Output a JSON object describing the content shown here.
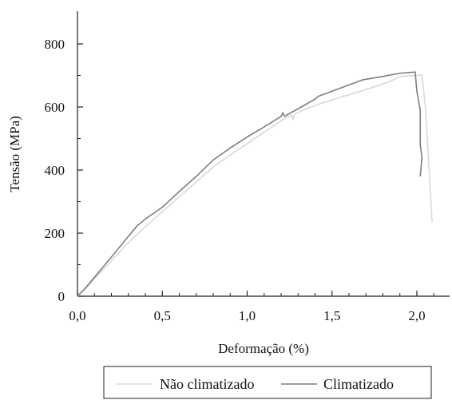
{
  "chart_data": {
    "type": "line",
    "title": "",
    "xlabel": "Deformação (%)",
    "ylabel": "Tensão (MPa)",
    "xlim": [
      0,
      2.2
    ],
    "ylim": [
      0,
      900
    ],
    "x_ticks": [
      0,
      0.5,
      1.0,
      1.5,
      2.0
    ],
    "x_tick_labels": [
      "0,0",
      "0,5",
      "1,0",
      "1,5",
      "2,0"
    ],
    "y_ticks": [
      0,
      200,
      400,
      600,
      800
    ],
    "y_tick_labels": [
      "0",
      "200",
      "400",
      "600",
      "800"
    ],
    "grid": false,
    "legend_position": "bottom",
    "series": [
      {
        "name": "Não climatizado",
        "color": "#d9d9d9",
        "points": [
          [
            0,
            0
          ],
          [
            0.05,
            25
          ],
          [
            0.1,
            55
          ],
          [
            0.2,
            112
          ],
          [
            0.3,
            170
          ],
          [
            0.4,
            220
          ],
          [
            0.5,
            268
          ],
          [
            0.6,
            315
          ],
          [
            0.7,
            362
          ],
          [
            0.8,
            410
          ],
          [
            0.9,
            448
          ],
          [
            1.0,
            484
          ],
          [
            1.1,
            520
          ],
          [
            1.2,
            556
          ],
          [
            1.26,
            575
          ],
          [
            1.27,
            560
          ],
          [
            1.28,
            578
          ],
          [
            1.35,
            595
          ],
          [
            1.45,
            614
          ],
          [
            1.55,
            631
          ],
          [
            1.65,
            647
          ],
          [
            1.75,
            664
          ],
          [
            1.85,
            683
          ],
          [
            1.9,
            697
          ],
          [
            1.95,
            699
          ],
          [
            2.0,
            700
          ],
          [
            2.03,
            702
          ],
          [
            2.05,
            600
          ],
          [
            2.07,
            420
          ],
          [
            2.09,
            235
          ]
        ]
      },
      {
        "name": "Climatizado",
        "color": "#7f7f7f",
        "points": [
          [
            0,
            0
          ],
          [
            0.05,
            28
          ],
          [
            0.1,
            60
          ],
          [
            0.2,
            124
          ],
          [
            0.3,
            190
          ],
          [
            0.35,
            222
          ],
          [
            0.4,
            245
          ],
          [
            0.5,
            282
          ],
          [
            0.6,
            332
          ],
          [
            0.7,
            380
          ],
          [
            0.8,
            432
          ],
          [
            0.9,
            470
          ],
          [
            1.0,
            505
          ],
          [
            1.1,
            537
          ],
          [
            1.2,
            570
          ],
          [
            1.21,
            582
          ],
          [
            1.22,
            570
          ],
          [
            1.25,
            580
          ],
          [
            1.3,
            594
          ],
          [
            1.4,
            625
          ],
          [
            1.42,
            634
          ],
          [
            1.5,
            650
          ],
          [
            1.6,
            670
          ],
          [
            1.68,
            686
          ],
          [
            1.8,
            697
          ],
          [
            1.9,
            707
          ],
          [
            1.97,
            710
          ],
          [
            1.99,
            711
          ],
          [
            2.0,
            650
          ],
          [
            2.02,
            590
          ],
          [
            2.02,
            480
          ],
          [
            2.03,
            440
          ],
          [
            2.02,
            380
          ]
        ]
      }
    ]
  }
}
